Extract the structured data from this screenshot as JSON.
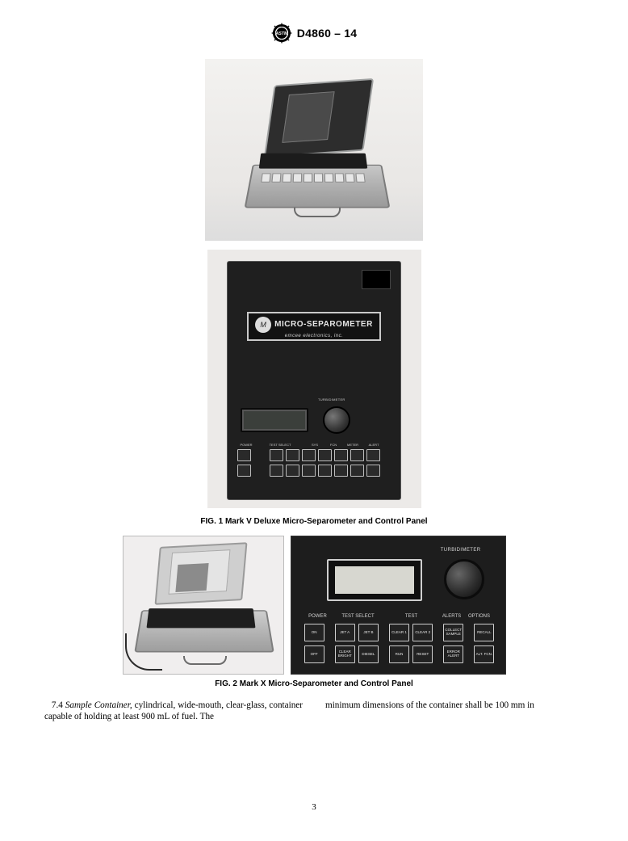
{
  "header": {
    "doc_id": "D4860 – 14",
    "logo_label": "ASTM"
  },
  "fig1": {
    "caption": "FIG. 1  Mark V Deluxe Micro-Separometer and Control Panel",
    "panel": {
      "brand_logo_text": "M",
      "brand_line1": "MICRO-SEPAROMETER",
      "brand_line2": "emcee electronics, inc.",
      "turbidimeter_label": "TURBIDIMETER",
      "section_labels": {
        "power": "POWER",
        "test_select": "TEST SELECT",
        "sys": "SYS",
        "fcn": "FCN",
        "meter": "METER",
        "alert": "ALERT"
      },
      "keypad": {
        "rows": 2,
        "cols_row1": 9,
        "cols_row2": 9,
        "key_border_color": "#bdbdbd",
        "key_bg_color": "#2a2a2a"
      },
      "panel_bg": "#1f1f1f",
      "lcd_bg": "#3b3f3b"
    }
  },
  "fig2": {
    "caption": "FIG. 2 Mark X Micro-Separometer and Control Panel",
    "panel": {
      "turbidimeter_label": "TURBIDIMETER",
      "sections": {
        "power": "POWER",
        "test_select": "TEST SELECT",
        "test": "TEST",
        "alerts": "ALERTS",
        "options": "OPTIONS"
      },
      "buttons_row1": [
        "ON",
        "JET A",
        "JET B",
        "CLEAR 1",
        "CLEAR 2",
        "COLLECT SAMPLE",
        "RECALL"
      ],
      "buttons_row2": [
        "OFF",
        "CLEAR BRIGHT",
        "DIESEL",
        "RUN",
        "RESET",
        "ERROR ALERT",
        "ALT. FCN."
      ],
      "section_widths": [
        34,
        66,
        66,
        34,
        34
      ],
      "panel_bg": "#1d1d1d",
      "button_border": "#cfcfcf",
      "button_bg": "#222222",
      "lcd_inner_bg": "#d7d7d0"
    }
  },
  "body": {
    "section_num": "7.4",
    "term": "Sample Container,",
    "col1_rest": " cylindrical, wide-mouth, clear-glass, container capable of holding at least 900 mL of fuel. The",
    "col2": "minimum dimensions of the container shall be 100 mm in"
  },
  "page_number": "3",
  "colors": {
    "page_bg": "#ffffff",
    "photo_bg": "#eceae8",
    "text": "#000000"
  },
  "fonts": {
    "body_family": "Times New Roman",
    "caption_family": "Arial",
    "caption_size_pt": 8,
    "body_size_pt": 9
  }
}
